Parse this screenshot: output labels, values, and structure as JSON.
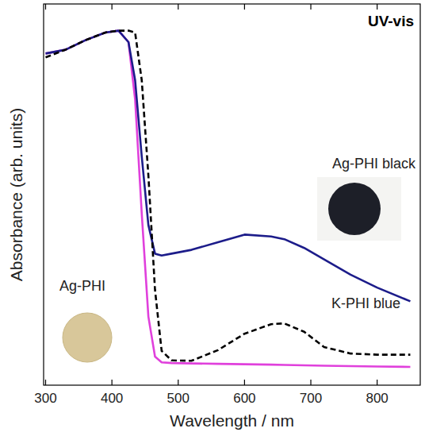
{
  "chart_data": {
    "type": "line",
    "title": "UV-vis",
    "x_label": "Wavelength / nm",
    "y_label": "Absorbance (arb. units)",
    "x": [
      300,
      330,
      360,
      390,
      410,
      425,
      435,
      445,
      455,
      465,
      475,
      490,
      520,
      560,
      600,
      640,
      660,
      690,
      720,
      760,
      800,
      850
    ],
    "series": [
      {
        "name": "Ag-PHI black",
        "color": "#1c1c8a",
        "line_style": "solid",
        "values": [
          0.87,
          0.88,
          0.905,
          0.925,
          0.93,
          0.9,
          0.8,
          0.6,
          0.42,
          0.345,
          0.34,
          0.345,
          0.355,
          0.375,
          0.395,
          0.39,
          0.383,
          0.36,
          0.33,
          0.29,
          0.256,
          0.22
        ]
      },
      {
        "name": "Ag-PHI",
        "color": "#e040dc",
        "line_style": "solid",
        "values": [
          0.87,
          0.88,
          0.905,
          0.925,
          0.93,
          0.9,
          0.75,
          0.45,
          0.18,
          0.075,
          0.06,
          0.058,
          0.057,
          0.056,
          0.055,
          0.054,
          0.053,
          0.052,
          0.051,
          0.05,
          0.049,
          0.048
        ]
      },
      {
        "name": "K-PHI blue",
        "color": "#000000",
        "line_style": "dashed",
        "values": [
          0.86,
          0.88,
          0.905,
          0.925,
          0.93,
          0.93,
          0.925,
          0.8,
          0.55,
          0.25,
          0.09,
          0.065,
          0.064,
          0.092,
          0.135,
          0.16,
          0.162,
          0.14,
          0.1,
          0.083,
          0.08,
          0.08
        ]
      }
    ],
    "xlim": [
      297,
      865
    ],
    "xticks": [
      300,
      400,
      500,
      600,
      700,
      800
    ],
    "ylim": [
      0,
      1
    ],
    "tick_labels": "x"
  }
}
